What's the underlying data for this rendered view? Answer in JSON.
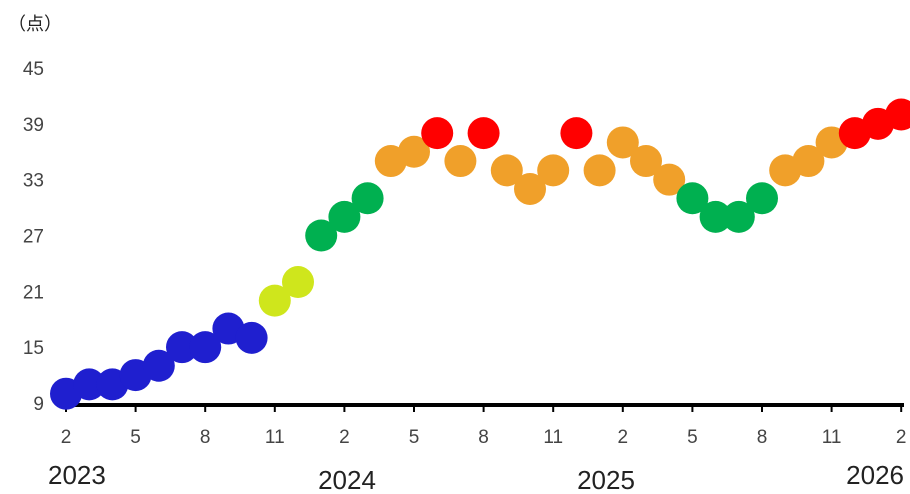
{
  "chart_data": {
    "type": "scatter",
    "unit_label": "（点）",
    "y_ticks": [
      9,
      15,
      21,
      27,
      33,
      39,
      45
    ],
    "ylim": [
      9,
      45
    ],
    "x_tick_labels": [
      "2",
      "5",
      "8",
      "11",
      "2",
      "5",
      "8",
      "11",
      "2",
      "5",
      "8",
      "11",
      "2"
    ],
    "year_labels": [
      "2023",
      "2024",
      "2025",
      "2026"
    ],
    "grid": false,
    "colors": {
      "blue": "#1f1fcf",
      "yellow_green": "#cfe61c",
      "green": "#00b050",
      "orange": "#f0a02a",
      "red": "#ff0000",
      "axis": "#000000"
    },
    "points": [
      {
        "x": "2023-02",
        "y": 10,
        "color": "blue"
      },
      {
        "x": "2023-03",
        "y": 11,
        "color": "blue"
      },
      {
        "x": "2023-04",
        "y": 11,
        "color": "blue"
      },
      {
        "x": "2023-05",
        "y": 12,
        "color": "blue"
      },
      {
        "x": "2023-06",
        "y": 13,
        "color": "blue"
      },
      {
        "x": "2023-07",
        "y": 15,
        "color": "blue"
      },
      {
        "x": "2023-08",
        "y": 15,
        "color": "blue"
      },
      {
        "x": "2023-09",
        "y": 17,
        "color": "blue"
      },
      {
        "x": "2023-10",
        "y": 16,
        "color": "blue"
      },
      {
        "x": "2023-11",
        "y": 20,
        "color": "yellow_green"
      },
      {
        "x": "2023-12",
        "y": 22,
        "color": "yellow_green"
      },
      {
        "x": "2024-01",
        "y": 27,
        "color": "green"
      },
      {
        "x": "2024-02",
        "y": 29,
        "color": "green"
      },
      {
        "x": "2024-03",
        "y": 31,
        "color": "green"
      },
      {
        "x": "2024-04",
        "y": 35,
        "color": "orange"
      },
      {
        "x": "2024-05",
        "y": 36,
        "color": "orange"
      },
      {
        "x": "2024-06",
        "y": 38,
        "color": "red"
      },
      {
        "x": "2024-07",
        "y": 35,
        "color": "orange"
      },
      {
        "x": "2024-08",
        "y": 38,
        "color": "red"
      },
      {
        "x": "2024-09",
        "y": 34,
        "color": "orange"
      },
      {
        "x": "2024-10",
        "y": 32,
        "color": "orange"
      },
      {
        "x": "2024-11",
        "y": 34,
        "color": "orange"
      },
      {
        "x": "2024-12",
        "y": 38,
        "color": "red"
      },
      {
        "x": "2025-01",
        "y": 34,
        "color": "orange"
      },
      {
        "x": "2025-02",
        "y": 37,
        "color": "orange"
      },
      {
        "x": "2025-03",
        "y": 35,
        "color": "orange"
      },
      {
        "x": "2025-04",
        "y": 33,
        "color": "orange"
      },
      {
        "x": "2025-05",
        "y": 31,
        "color": "green"
      },
      {
        "x": "2025-06",
        "y": 29,
        "color": "green"
      },
      {
        "x": "2025-07",
        "y": 29,
        "color": "green"
      },
      {
        "x": "2025-08",
        "y": 31,
        "color": "green"
      },
      {
        "x": "2025-09",
        "y": 34,
        "color": "orange"
      },
      {
        "x": "2025-10",
        "y": 35,
        "color": "orange"
      },
      {
        "x": "2025-11",
        "y": 37,
        "color": "orange"
      },
      {
        "x": "2025-12",
        "y": 38,
        "color": "red"
      },
      {
        "x": "2026-01",
        "y": 39,
        "color": "red"
      },
      {
        "x": "2026-02",
        "y": 40,
        "color": "red"
      }
    ]
  }
}
